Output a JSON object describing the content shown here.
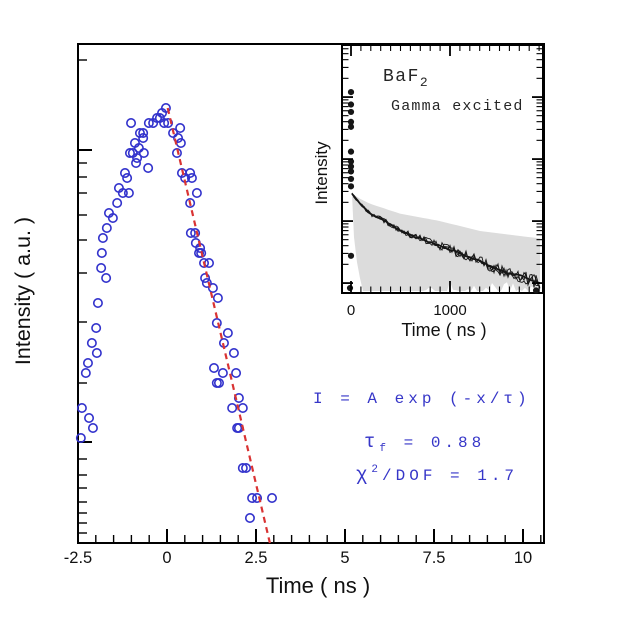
{
  "colors": {
    "background": "#ffffff",
    "axis": "#000000",
    "scatter": "#3232cc",
    "fit_line": "#d93333",
    "annotation_blue": "#3636c8",
    "inset_data": "#161616",
    "inset_band": "#dcdcdc",
    "inset_text": "#262626"
  },
  "chart_data": [
    {
      "type": "scatter",
      "title": "",
      "xlabel": "Time ( ns )",
      "ylabel": "Intensity ( a.u. )",
      "xlim": [
        -2.5,
        10.6
      ],
      "yscale": "log-like, unlabeled arbitrary units (values below given as normalized plot height 0-1)",
      "grid": false,
      "x_major_ticks": [
        {
          "t": -2.5,
          "label": "-2.5"
        },
        {
          "t": 0,
          "label": "0"
        },
        {
          "t": 2.5,
          "label": "2.5"
        },
        {
          "t": 5,
          "label": "5"
        },
        {
          "t": 7.5,
          "label": "7.5"
        },
        {
          "t": 10,
          "label": "10"
        }
      ],
      "x_minor_step": 0.5,
      "y_ticks": [
        {
          "i": 0.966,
          "major": false
        },
        {
          "i": 0.786,
          "major": true
        },
        {
          "i": 0.76,
          "major": false
        },
        {
          "i": 0.732,
          "major": false
        },
        {
          "i": 0.7,
          "major": false
        },
        {
          "i": 0.656,
          "major": false
        },
        {
          "i": 0.606,
          "major": false
        },
        {
          "i": 0.54,
          "major": false
        },
        {
          "i": 0.442,
          "major": false
        },
        {
          "i": 0.32,
          "major": false
        },
        {
          "i": 0.202,
          "major": true
        },
        {
          "i": 0.168,
          "major": false
        },
        {
          "i": 0.136,
          "major": false
        },
        {
          "i": 0.11,
          "major": false
        },
        {
          "i": 0.082,
          "major": false
        },
        {
          "i": 0.06,
          "major": false
        },
        {
          "i": 0.04,
          "major": false
        },
        {
          "i": 0.02,
          "major": false
        }
      ],
      "points": [
        [
          -2.42,
          0.21
        ],
        [
          -2.39,
          0.27
        ],
        [
          -2.28,
          0.34
        ],
        [
          -2.22,
          0.36
        ],
        [
          -2.19,
          0.25
        ],
        [
          -2.11,
          0.4
        ],
        [
          -2.08,
          0.23
        ],
        [
          -1.99,
          0.43
        ],
        [
          -1.97,
          0.38
        ],
        [
          -1.94,
          0.48
        ],
        [
          -1.85,
          0.55
        ],
        [
          -1.83,
          0.58
        ],
        [
          -1.8,
          0.61
        ],
        [
          -1.71,
          0.53
        ],
        [
          -1.69,
          0.63
        ],
        [
          -1.63,
          0.66
        ],
        [
          -1.52,
          0.65
        ],
        [
          -1.4,
          0.68
        ],
        [
          -1.35,
          0.71
        ],
        [
          -1.24,
          0.7
        ],
        [
          -1.18,
          0.74
        ],
        [
          -1.12,
          0.73
        ],
        [
          -1.07,
          0.7
        ],
        [
          -1.04,
          0.78
        ],
        [
          -1.01,
          0.84
        ],
        [
          -0.96,
          0.78
        ],
        [
          -0.9,
          0.8
        ],
        [
          -0.87,
          0.76
        ],
        [
          -0.84,
          0.77
        ],
        [
          -0.79,
          0.79
        ],
        [
          -0.76,
          0.82
        ],
        [
          -0.67,
          0.81
        ],
        [
          -0.67,
          0.82
        ],
        [
          -0.65,
          0.78
        ],
        [
          -0.53,
          0.75
        ],
        [
          -0.51,
          0.84
        ],
        [
          -0.39,
          0.84
        ],
        [
          -0.28,
          0.85
        ],
        [
          -0.2,
          0.85
        ],
        [
          -0.14,
          0.86
        ],
        [
          -0.08,
          0.84
        ],
        [
          -0.03,
          0.87
        ],
        [
          0.03,
          0.84
        ],
        [
          0.17,
          0.82
        ],
        [
          0.28,
          0.78
        ],
        [
          0.31,
          0.81
        ],
        [
          0.37,
          0.83
        ],
        [
          0.39,
          0.8
        ],
        [
          0.42,
          0.74
        ],
        [
          0.51,
          0.73
        ],
        [
          0.65,
          0.74
        ],
        [
          0.65,
          0.68
        ],
        [
          0.67,
          0.62
        ],
        [
          0.7,
          0.73
        ],
        [
          0.79,
          0.62
        ],
        [
          0.81,
          0.6
        ],
        [
          0.84,
          0.7
        ],
        [
          0.9,
          0.58
        ],
        [
          0.93,
          0.59
        ],
        [
          0.96,
          0.58
        ],
        [
          1.04,
          0.56
        ],
        [
          1.07,
          0.53
        ],
        [
          1.12,
          0.52
        ],
        [
          1.18,
          0.56
        ],
        [
          1.29,
          0.51
        ],
        [
          1.32,
          0.35
        ],
        [
          1.4,
          0.44
        ],
        [
          1.4,
          0.32
        ],
        [
          1.43,
          0.49
        ],
        [
          1.46,
          0.32
        ],
        [
          1.57,
          0.34
        ],
        [
          1.6,
          0.4
        ],
        [
          1.71,
          0.42
        ],
        [
          1.83,
          0.27
        ],
        [
          1.88,
          0.38
        ],
        [
          1.94,
          0.34
        ],
        [
          1.97,
          0.23
        ],
        [
          2.02,
          0.29
        ],
        [
          2.02,
          0.23
        ],
        [
          2.13,
          0.27
        ],
        [
          2.13,
          0.15
        ],
        [
          2.22,
          0.15
        ],
        [
          2.33,
          0.05
        ],
        [
          2.39,
          0.09
        ],
        [
          2.53,
          0.09
        ],
        [
          2.95,
          0.09
        ]
      ],
      "fit_line": {
        "t1": 0.02,
        "i1": 0.87,
        "t2": 2.89,
        "i2": 0.0,
        "style": "dashed"
      },
      "annotations": {
        "line1": "I = A exp (-x/τ)",
        "tau_symbol": "τ",
        "tau_sub": "f",
        "tau_rest": " = 0.88",
        "chi_symbol": "χ",
        "chi_sup": "2",
        "chi_rest": "/DOF = 1.7"
      }
    },
    {
      "type": "line",
      "title_main": "BaF",
      "title_sub": "2",
      "subtitle": "Gamma excited",
      "xlabel": "Time ( ns )",
      "ylabel": "Intensity",
      "xlim": [
        -90,
        1940
      ],
      "yscale": "log, unlabeled (values below given as normalized plot height 0-1)",
      "x_major_ticks": [
        {
          "t": 0,
          "label": "0"
        },
        {
          "t": 1000,
          "label": "1000"
        }
      ],
      "x_minor_step": 100,
      "y_log_decade_i": [
        0.79,
        0.54,
        0.29,
        0.04
      ],
      "decay_curve": [
        [
          10,
          0.4
        ],
        [
          91,
          0.36
        ],
        [
          192,
          0.32
        ],
        [
          343,
          0.29
        ],
        [
          495,
          0.25
        ],
        [
          697,
          0.22
        ],
        [
          899,
          0.19
        ],
        [
          1101,
          0.16
        ],
        [
          1303,
          0.13
        ],
        [
          1505,
          0.09
        ],
        [
          1707,
          0.07
        ],
        [
          1909,
          0.04
        ]
      ],
      "band_top": [
        [
          10,
          0.4
        ],
        [
          91,
          0.38
        ],
        [
          192,
          0.36
        ],
        [
          495,
          0.32
        ],
        [
          899,
          0.29
        ],
        [
          1303,
          0.25
        ],
        [
          1707,
          0.23
        ],
        [
          1909,
          0.22
        ]
      ],
      "band_bottom": [
        [
          10,
          0.36
        ],
        [
          50,
          0.2
        ],
        [
          91,
          0.06
        ],
        [
          130,
          0.0
        ],
        [
          700,
          0.0
        ],
        [
          800,
          0.04
        ],
        [
          899,
          0.0
        ],
        [
          1000,
          0.05
        ],
        [
          1101,
          0.01
        ],
        [
          1200,
          0.05
        ],
        [
          1303,
          0.02
        ],
        [
          1400,
          0.06
        ],
        [
          1505,
          0.03
        ],
        [
          1600,
          0.05
        ],
        [
          1707,
          0.02
        ],
        [
          1800,
          0.04
        ],
        [
          1909,
          0.02
        ]
      ],
      "prompt_dots": [
        [
          0,
          0.81
        ],
        [
          0,
          0.76
        ],
        [
          0,
          0.73
        ],
        [
          0,
          0.69
        ],
        [
          0,
          0.67
        ],
        [
          0,
          0.57
        ],
        [
          0,
          0.53
        ],
        [
          0,
          0.51
        ],
        [
          0,
          0.49
        ],
        [
          0,
          0.46
        ],
        [
          0,
          0.43
        ],
        [
          0,
          0.15
        ],
        [
          -10,
          0.02
        ],
        [
          1869,
          0.01
        ]
      ]
    }
  ]
}
